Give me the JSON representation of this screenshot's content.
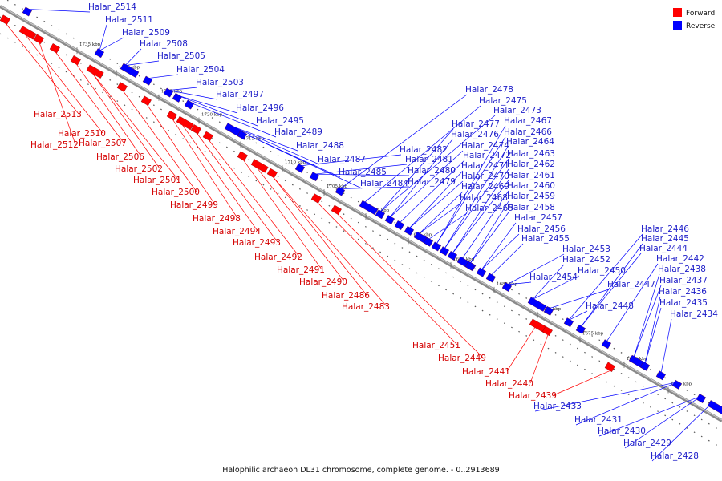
{
  "caption": "Halophilic archaeon DL31 chromosome, complete genome. - 0..2913689",
  "legend": [
    {
      "label": "Forward",
      "color": "#ff0000"
    },
    {
      "label": "Reverse",
      "color": "#0000ff"
    }
  ],
  "colors": {
    "forward": "#ff0000",
    "reverse": "#0000ff",
    "forward_label": "#d40000",
    "reverse_label": "#1c1cc8",
    "backbone": "#8a8a8a"
  },
  "ticks": [
    "1735 kbp",
    "1730 kbp",
    "1725 kbp",
    "1720 kbp",
    "1715 kbp",
    "1710 kbp",
    "1705 kbp",
    "1700 kbp",
    "1695 kbp",
    "1690 kbp",
    "1685 kbp",
    "1680 kbp",
    "1675 kbp",
    "1670 kbp",
    "1665 kbp"
  ],
  "reverse_genes": [
    "Halar_2514",
    "Halar_2511",
    "Halar_2509",
    "Halar_2508",
    "Halar_2505",
    "Halar_2504",
    "Halar_2503",
    "Halar_2497",
    "Halar_2496",
    "Halar_2495",
    "Halar_2489",
    "Halar_2488",
    "Halar_2487",
    "Halar_2485",
    "Halar_2484",
    "Halar_2482",
    "Halar_2481",
    "Halar_2480",
    "Halar_2479",
    "Halar_2478",
    "Halar_2475",
    "Halar_2473",
    "Halar_2477",
    "Halar_2476",
    "Halar_2474",
    "Halar_2472",
    "Halar_2471",
    "Halar_2470",
    "Halar_2469",
    "Halar_2468",
    "Halar_2465",
    "Halar_2467",
    "Halar_2466",
    "Halar_2464",
    "Halar_2463",
    "Halar_2462",
    "Halar_2461",
    "Halar_2460",
    "Halar_2459",
    "Halar_2458",
    "Halar_2457",
    "Halar_2456",
    "Halar_2455",
    "Halar_2454",
    "Halar_2453",
    "Halar_2452",
    "Halar_2450",
    "Halar_2447",
    "Halar_2448",
    "Halar_2446",
    "Halar_2445",
    "Halar_2444",
    "Halar_2442",
    "Halar_2438",
    "Halar_2437",
    "Halar_2436",
    "Halar_2435",
    "Halar_2434",
    "Halar_2433",
    "Halar_2431",
    "Halar_2430",
    "Halar_2429",
    "Halar_2428"
  ],
  "forward_genes": [
    "Halar_2513",
    "Halar_2510",
    "Halar_2512",
    "Halar_2507",
    "Halar_2506",
    "Halar_2502",
    "Halar_2501",
    "Halar_2500",
    "Halar_2499",
    "Halar_2498",
    "Halar_2494",
    "Halar_2493",
    "Halar_2492",
    "Halar_2491",
    "Halar_2490",
    "Halar_2486",
    "Halar_2483",
    "Halar_2451",
    "Halar_2449",
    "Halar_2441",
    "Halar_2440",
    "Halar_2439"
  ]
}
